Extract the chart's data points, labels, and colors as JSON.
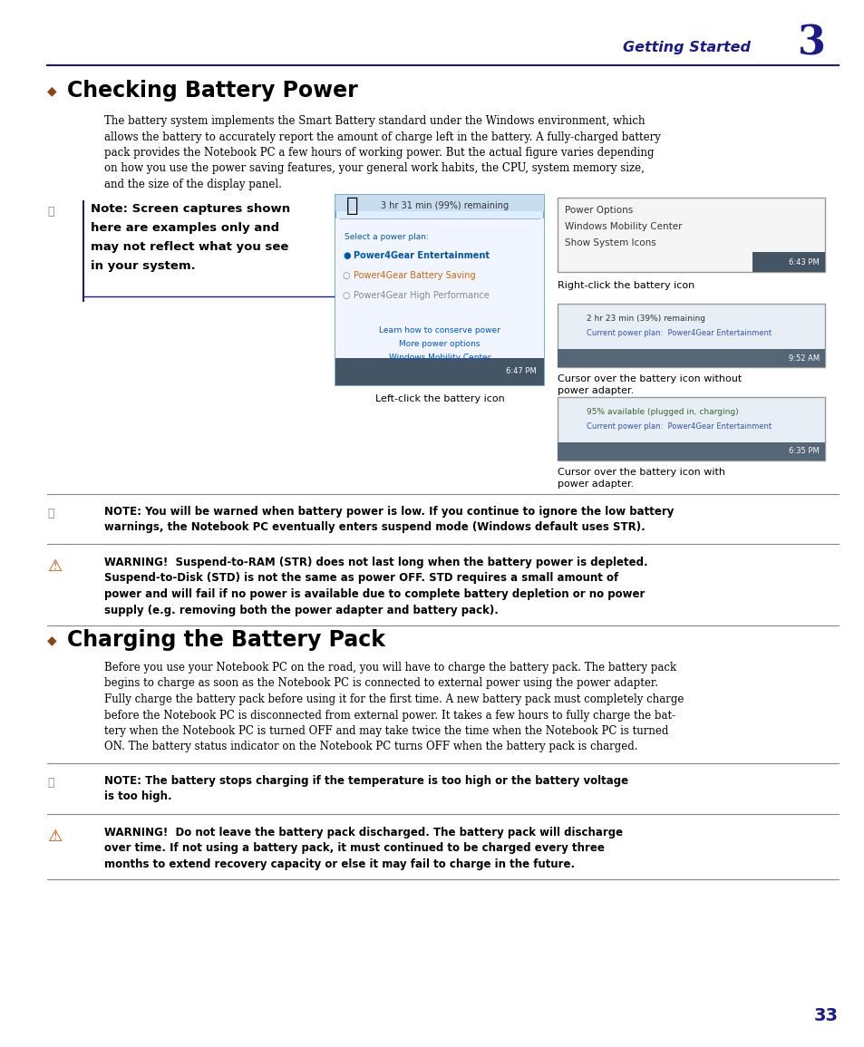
{
  "page_bg": "#ffffff",
  "header_text": "Getting Started",
  "header_number": "3",
  "header_color": "#1a1a8c",
  "header_line_color": "#1a1a8c",
  "section1_title": "Checking Battery Power",
  "section1_body_lines": [
    "The battery system implements the Smart Battery standard under the Windows environment, which",
    "allows the battery to accurately report the amount of charge left in the battery. A fully-charged battery",
    "pack provides the Notebook PC a few hours of working power. But the actual figure varies depending",
    "on how you use the power saving features, your general work habits, the CPU, system memory size,",
    "and the size of the display panel."
  ],
  "note1_lines": [
    "Note: Screen captures shown",
    "here are examples only and",
    "may not reflect what you see",
    "in your system."
  ],
  "img_left_caption": "Left-click the battery icon",
  "img_right_top_caption": "Right-click the battery icon",
  "img_right_bottom1_caption": "Cursor over the battery icon without\npower adapter.",
  "img_right_bottom2_caption": "Cursor over the battery icon with\npower adapter.",
  "note2_line1": "NOTE: You will be warned when battery power is low. If you continue to ignore the low battery",
  "note2_line2": "warnings, the Notebook PC eventually enters suspend mode (Windows default uses STR).",
  "warning1_line1": "WARNING!  Suspend-to-RAM (STR) does not last long when the battery power is depleted.",
  "warning1_line2": "Suspend-to-Disk (STD) is not the same as power OFF. STD requires a small amount of",
  "warning1_line3": "power and will fail if no power is available due to complete battery depletion or no power",
  "warning1_line4": "supply (e.g. removing both the power adapter and battery pack).",
  "section2_title": "Charging the Battery Pack",
  "section2_body_lines": [
    "Before you use your Notebook PC on the road, you will have to charge the battery pack. The battery pack",
    "begins to charge as soon as the Notebook PC is connected to external power using the power adapter.",
    "Fully charge the battery pack before using it for the first time. A new battery pack must completely charge",
    "before the Notebook PC is disconnected from external power. It takes a few hours to fully charge the bat-",
    "tery when the Notebook PC is turned OFF and may take twice the time when the Notebook PC is turned",
    "ON. The battery status indicator on the Notebook PC turns OFF when the battery pack is charged."
  ],
  "note3_line1": "NOTE: The battery stops charging if the temperature is too high or the battery voltage",
  "note3_line2": "is too high.",
  "warning2_line1": "WARNING!  Do not leave the battery pack discharged. The battery pack will discharge",
  "warning2_line2": "over time. If not using a battery pack, it must continued to be charged every three",
  "warning2_line3": "months to extend recovery capacity or else it may fail to charge in the future.",
  "page_number": "33",
  "figsize": [
    9.54,
    11.55
  ],
  "dpi": 100
}
